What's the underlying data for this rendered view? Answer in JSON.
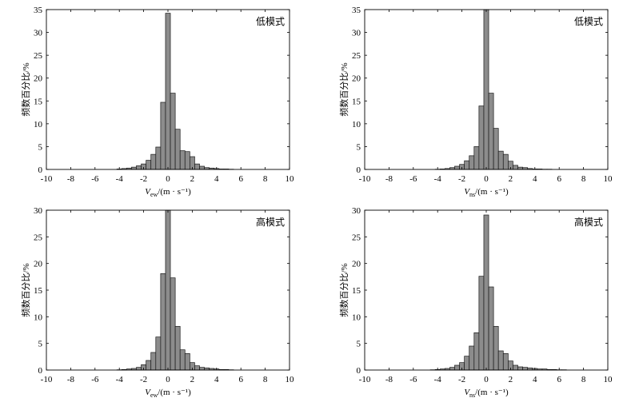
{
  "colors": {
    "bar_fill": "#8c8c8c",
    "bar_edge": "#1a1a1a",
    "axes": "#000000"
  },
  "chart_data": [
    {
      "type": "bar",
      "annotation": "低模式",
      "ylabel": "频数百分比/%",
      "xlabel": {
        "symbol": "V",
        "subscript": "ew",
        "unit": "/(m · s⁻¹)"
      },
      "xlim": [
        -10,
        10
      ],
      "ylim": [
        0,
        35
      ],
      "xticks": [
        -10,
        -8,
        -6,
        -4,
        -2,
        0,
        2,
        4,
        6,
        8,
        10
      ],
      "yticks": [
        0,
        5,
        10,
        15,
        20,
        25,
        30,
        35
      ],
      "bin_width": 0.4,
      "x": [
        -4.0,
        -3.6,
        -3.2,
        -2.8,
        -2.4,
        -2.0,
        -1.6,
        -1.2,
        -0.8,
        -0.4,
        0,
        0.4,
        0.8,
        1.2,
        1.6,
        2.0,
        2.4,
        2.8,
        3.2,
        3.6,
        4.0,
        4.4,
        4.8,
        5.2
      ],
      "values": [
        0.1,
        0.2,
        0.3,
        0.5,
        0.8,
        1.2,
        2.0,
        3.3,
        4.9,
        14.7,
        34.2,
        16.7,
        8.8,
        4.1,
        3.9,
        2.8,
        1.2,
        0.7,
        0.4,
        0.3,
        0.2,
        0.1,
        0.1,
        0.05
      ]
    },
    {
      "type": "bar",
      "annotation": "低模式",
      "ylabel": "频数百分比/%",
      "xlabel": {
        "symbol": "V",
        "subscript": "ns",
        "unit": "/(m · s⁻¹)"
      },
      "xlim": [
        -10,
        10
      ],
      "ylim": [
        0,
        35
      ],
      "xticks": [
        -10,
        -8,
        -6,
        -4,
        -2,
        0,
        2,
        4,
        6,
        8,
        10
      ],
      "yticks": [
        0,
        5,
        10,
        15,
        20,
        25,
        30,
        35
      ],
      "bin_width": 0.4,
      "x": [
        -4.0,
        -3.6,
        -3.2,
        -2.8,
        -2.4,
        -2.0,
        -1.6,
        -1.2,
        -0.8,
        -0.4,
        0,
        0.4,
        0.8,
        1.2,
        1.6,
        2.0,
        2.4,
        2.8,
        3.2,
        3.6,
        4.0,
        4.4,
        4.8,
        5.2
      ],
      "values": [
        0.05,
        0.1,
        0.2,
        0.4,
        0.7,
        1.1,
        1.9,
        3.0,
        5.0,
        13.9,
        35,
        16.7,
        9.0,
        4.0,
        3.3,
        1.8,
        0.9,
        0.5,
        0.4,
        0.2,
        0.1,
        0.1,
        0.05,
        0.05
      ]
    },
    {
      "type": "bar",
      "annotation": "高模式",
      "ylabel": "频数百分比/%",
      "xlabel": {
        "symbol": "V",
        "subscript": "ew",
        "unit": "/(m · s⁻¹)"
      },
      "xlim": [
        -10,
        10
      ],
      "ylim": [
        0,
        30
      ],
      "xticks": [
        -10,
        -8,
        -6,
        -4,
        -2,
        0,
        2,
        4,
        6,
        8,
        10
      ],
      "yticks": [
        0,
        5,
        10,
        15,
        20,
        25,
        30
      ],
      "bin_width": 0.4,
      "x": [
        -4.0,
        -3.6,
        -3.2,
        -2.8,
        -2.4,
        -2.0,
        -1.6,
        -1.2,
        -0.8,
        -0.4,
        0,
        0.4,
        0.8,
        1.2,
        1.6,
        2.0,
        2.4,
        2.8,
        3.2,
        3.6,
        4.0,
        4.4,
        4.8,
        5.2
      ],
      "values": [
        0.05,
        0.1,
        0.2,
        0.3,
        0.5,
        1.0,
        1.8,
        3.3,
        6.2,
        18.1,
        30,
        17.3,
        8.2,
        3.8,
        3.1,
        1.4,
        0.8,
        0.5,
        0.4,
        0.3,
        0.2,
        0.1,
        0.1,
        0.05
      ]
    },
    {
      "type": "bar",
      "annotation": "高模式",
      "ylabel": "频数百分比/%",
      "xlabel": {
        "symbol": "V",
        "subscript": "ns",
        "unit": "/(m · s⁻¹)"
      },
      "xlim": [
        -10,
        10
      ],
      "ylim": [
        0,
        30
      ],
      "xticks": [
        -10,
        -8,
        -6,
        -4,
        -2,
        0,
        2,
        4,
        6,
        8,
        10
      ],
      "yticks": [
        0,
        5,
        10,
        15,
        20,
        25,
        30
      ],
      "bin_width": 0.4,
      "x": [
        -4.4,
        -4.0,
        -3.6,
        -3.2,
        -2.8,
        -2.4,
        -2.0,
        -1.6,
        -1.2,
        -0.8,
        -0.4,
        0,
        0.4,
        0.8,
        1.2,
        1.6,
        2.0,
        2.4,
        2.8,
        3.2,
        3.6,
        4.0,
        4.4,
        4.8,
        5.2,
        5.6,
        6.0,
        6.4
      ],
      "values": [
        0.05,
        0.1,
        0.2,
        0.3,
        0.5,
        0.9,
        1.4,
        2.6,
        4.5,
        7.0,
        17.6,
        29.1,
        15.6,
        8.2,
        3.6,
        3.1,
        1.7,
        0.9,
        0.6,
        0.5,
        0.4,
        0.3,
        0.2,
        0.2,
        0.1,
        0.1,
        0.05,
        0.05
      ]
    }
  ]
}
